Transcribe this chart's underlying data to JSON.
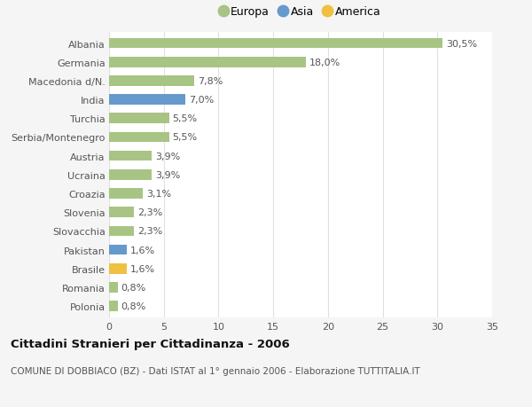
{
  "countries": [
    "Albania",
    "Germania",
    "Macedonia d/N.",
    "India",
    "Turchia",
    "Serbia/Montenegro",
    "Austria",
    "Ucraina",
    "Croazia",
    "Slovenia",
    "Slovacchia",
    "Pakistan",
    "Brasile",
    "Romania",
    "Polonia"
  ],
  "values": [
    30.5,
    18.0,
    7.8,
    7.0,
    5.5,
    5.5,
    3.9,
    3.9,
    3.1,
    2.3,
    2.3,
    1.6,
    1.6,
    0.8,
    0.8
  ],
  "labels": [
    "30,5%",
    "18,0%",
    "7,8%",
    "7,0%",
    "5,5%",
    "5,5%",
    "3,9%",
    "3,9%",
    "3,1%",
    "2,3%",
    "2,3%",
    "1,6%",
    "1,6%",
    "0,8%",
    "0,8%"
  ],
  "continents": [
    "Europa",
    "Europa",
    "Europa",
    "Asia",
    "Europa",
    "Europa",
    "Europa",
    "Europa",
    "Europa",
    "Europa",
    "Europa",
    "Asia",
    "America",
    "Europa",
    "Europa"
  ],
  "colors": {
    "Europa": "#a8c484",
    "Asia": "#6699cc",
    "America": "#f0c040"
  },
  "title": "Cittadini Stranieri per Cittadinanza - 2006",
  "subtitle": "COMUNE DI DOBBIACO (BZ) - Dati ISTAT al 1° gennaio 2006 - Elaborazione TUTTITALIA.IT",
  "xlim": [
    0,
    35
  ],
  "xticks": [
    0,
    5,
    10,
    15,
    20,
    25,
    30,
    35
  ],
  "bg_color": "#f5f5f5",
  "bar_bg_color": "#ffffff",
  "grid_color": "#e0e0e0",
  "label_fontsize": 8,
  "tick_fontsize": 8,
  "bar_height": 0.55
}
